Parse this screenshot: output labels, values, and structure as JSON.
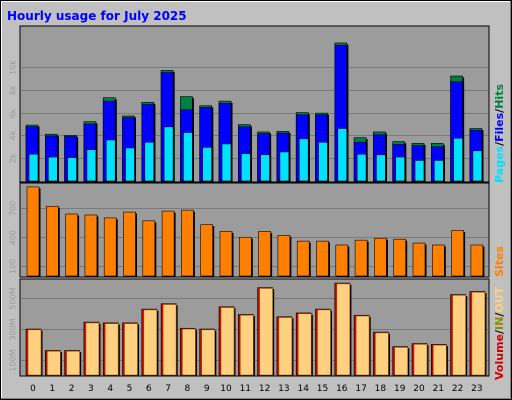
{
  "title": "Hourly usage for July 2025",
  "colors": {
    "background": "#c0c0c0",
    "plot": "#9c9c9c",
    "title": "#0000ff",
    "hits": "#008040",
    "files": "#0000ff",
    "pages": "#00e0ff",
    "sites": "#ff8000",
    "volume": "#d00000",
    "in": "#909000",
    "out": "#ffd080"
  },
  "chart_data": [
    {
      "type": "bar",
      "name": "hits-files-pages",
      "categories": [
        "0",
        "1",
        "2",
        "3",
        "4",
        "5",
        "6",
        "7",
        "8",
        "9",
        "10",
        "11",
        "12",
        "13",
        "14",
        "15",
        "16",
        "17",
        "18",
        "19",
        "20",
        "21",
        "22",
        "23"
      ],
      "yticks": [
        "2k",
        "4k",
        "6k",
        "8k",
        "10k"
      ],
      "ytick_values": [
        2000,
        4000,
        6000,
        8000,
        10000
      ],
      "ylim": [
        0,
        13500
      ],
      "side_labels": [
        "Pages",
        "/",
        "Files",
        "/",
        "Hits"
      ],
      "series": [
        {
          "name": "Hits",
          "values": [
            4900,
            4100,
            4000,
            5200,
            7300,
            5700,
            6900,
            9700,
            7400,
            6600,
            7000,
            4950,
            4300,
            4350,
            6000,
            5950,
            12100,
            3800,
            4300,
            3450,
            3300,
            3300,
            9200,
            4600
          ]
        },
        {
          "name": "Files",
          "values": [
            4750,
            3950,
            3900,
            5000,
            7000,
            5550,
            6700,
            9500,
            6250,
            6450,
            6800,
            4750,
            4150,
            4200,
            5800,
            5800,
            11900,
            3400,
            4050,
            3200,
            3100,
            3000,
            8700,
            4450
          ]
        },
        {
          "name": "Pages",
          "values": [
            2350,
            2100,
            2050,
            2750,
            3600,
            2900,
            3400,
            4750,
            4250,
            2950,
            3250,
            2400,
            2300,
            2550,
            3700,
            3400,
            4600,
            2350,
            2300,
            2100,
            1800,
            1800,
            3750,
            2650
          ]
        }
      ]
    },
    {
      "type": "bar",
      "name": "sites",
      "categories": [
        "0",
        "1",
        "2",
        "3",
        "4",
        "5",
        "6",
        "7",
        "8",
        "9",
        "10",
        "11",
        "12",
        "13",
        "14",
        "15",
        "16",
        "17",
        "18",
        "19",
        "20",
        "21",
        "22",
        "23"
      ],
      "yticks": [
        "100",
        "400",
        "700"
      ],
      "ytick_values": [
        100,
        400,
        700
      ],
      "ylim": [
        0,
        950
      ],
      "side_labels": [
        "Sites"
      ],
      "series": [
        {
          "name": "Sites",
          "values": [
            920,
            720,
            640,
            630,
            600,
            660,
            570,
            670,
            680,
            530,
            460,
            400,
            460,
            420,
            360,
            360,
            320,
            370,
            390,
            380,
            340,
            320,
            470,
            320
          ]
        }
      ]
    },
    {
      "type": "bar",
      "name": "volume",
      "categories": [
        "0",
        "1",
        "2",
        "3",
        "4",
        "5",
        "6",
        "7",
        "8",
        "9",
        "10",
        "11",
        "12",
        "13",
        "14",
        "15",
        "16",
        "17",
        "18",
        "19",
        "20",
        "21",
        "22",
        "23"
      ],
      "yticks": [
        "100M",
        "300M",
        "500M"
      ],
      "ytick_values": [
        100,
        300,
        500
      ],
      "ylim": [
        0,
        620
      ],
      "side_labels": [
        "Volume",
        "/",
        "IN",
        "/",
        "OUT"
      ],
      "series": [
        {
          "name": "Volume",
          "values": [
            300,
            160,
            160,
            345,
            340,
            340,
            430,
            465,
            305,
            300,
            445,
            395,
            570,
            380,
            405,
            430,
            600,
            390,
            280,
            185,
            205,
            200,
            525,
            545
          ]
        },
        {
          "name": "OUT",
          "values": [
            295,
            155,
            155,
            340,
            335,
            335,
            425,
            460,
            300,
            295,
            440,
            390,
            565,
            375,
            400,
            425,
            595,
            385,
            275,
            180,
            200,
            195,
            520,
            540
          ]
        }
      ]
    }
  ],
  "xlabels": [
    "0",
    "1",
    "2",
    "3",
    "4",
    "5",
    "6",
    "7",
    "8",
    "9",
    "10",
    "11",
    "12",
    "13",
    "14",
    "15",
    "16",
    "17",
    "18",
    "19",
    "20",
    "21",
    "22",
    "23"
  ]
}
